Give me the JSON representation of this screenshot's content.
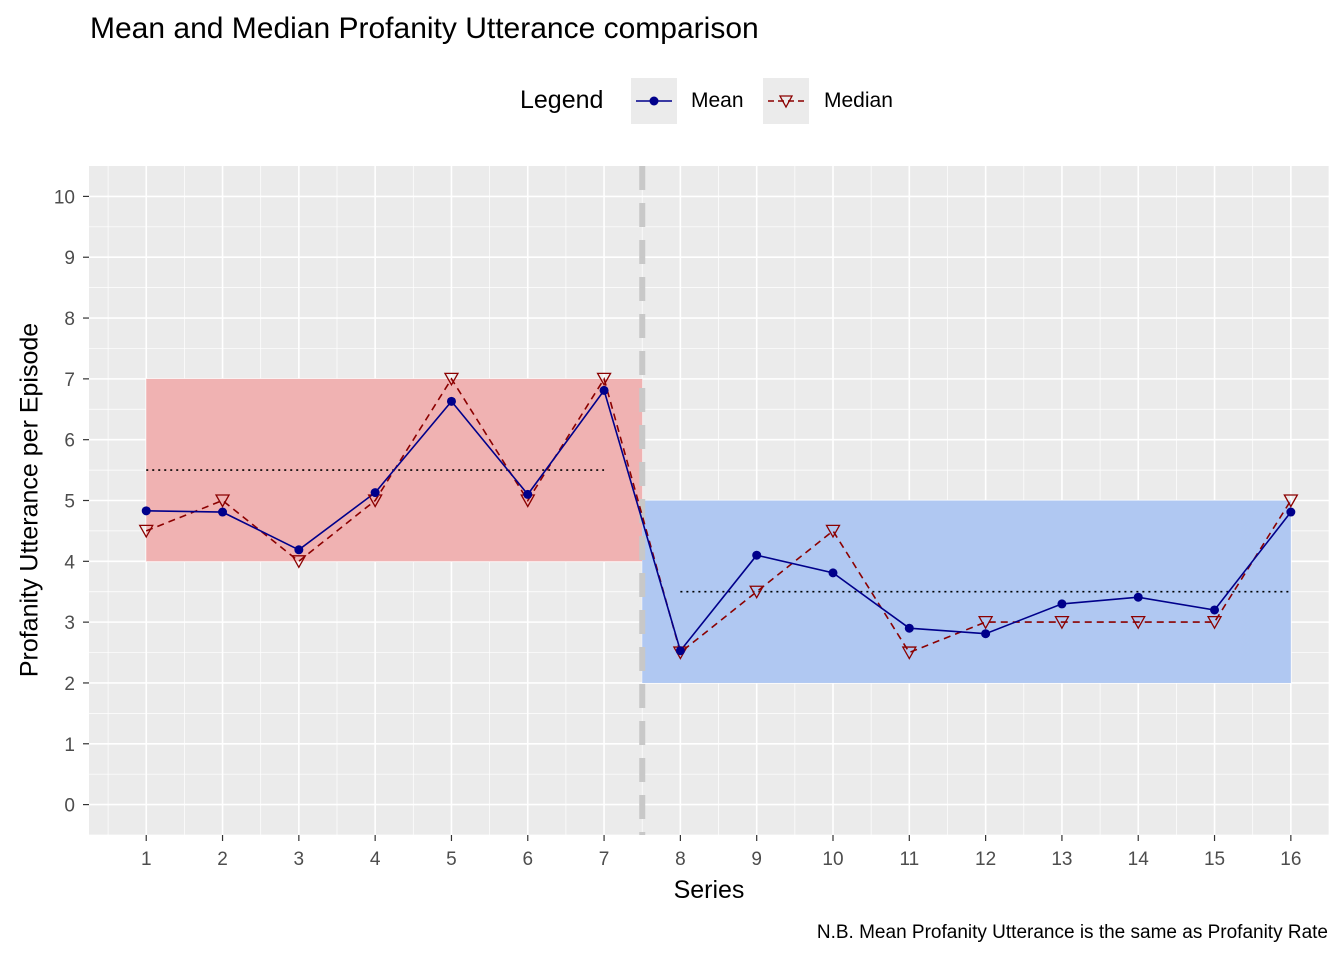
{
  "title": "Mean and Median Profanity Utterance comparison",
  "caption": "N.B. Mean Profanity Utterance is the same as Profanity Rate",
  "legend": {
    "title": "Legend",
    "items": [
      {
        "label": "Mean",
        "color": "#00008b",
        "line": "solid",
        "marker": "circle"
      },
      {
        "label": "Median",
        "color": "#8b0000",
        "line": "dashed",
        "marker": "triangle-down-open"
      }
    ]
  },
  "chart_data": {
    "type": "line",
    "title": "Mean and Median Profanity Utterance comparison",
    "xlabel": "Series",
    "ylabel": "Profanity Utterance per Episode",
    "x": [
      1,
      2,
      3,
      4,
      5,
      6,
      7,
      8,
      9,
      10,
      11,
      12,
      13,
      14,
      15,
      16
    ],
    "xlim": [
      0.25,
      16.5
    ],
    "ylim": [
      -0.5,
      10.5
    ],
    "yticks": [
      0,
      1,
      2,
      3,
      4,
      5,
      6,
      7,
      8,
      9,
      10
    ],
    "grid": true,
    "legend_position": "top",
    "series": [
      {
        "name": "Mean",
        "color": "#00008b",
        "values": [
          4.83,
          4.81,
          4.19,
          5.13,
          6.63,
          5.1,
          6.81,
          2.53,
          4.1,
          3.81,
          2.9,
          2.81,
          3.3,
          3.41,
          3.2,
          4.81
        ]
      },
      {
        "name": "Median",
        "color": "#8b0000",
        "values": [
          4.5,
          5.0,
          4.0,
          5.0,
          7.0,
          5.0,
          7.0,
          2.5,
          3.5,
          4.5,
          2.5,
          3.0,
          3.0,
          3.0,
          3.0,
          5.0
        ]
      }
    ],
    "bands": [
      {
        "x": [
          1,
          7.5
        ],
        "y": [
          4,
          7
        ],
        "color": "#f0b2b2"
      },
      {
        "x": [
          7.5,
          16
        ],
        "y": [
          2,
          5
        ],
        "color": "#b0c8f2"
      }
    ],
    "reference_lines": [
      {
        "x": [
          1,
          7
        ],
        "y": 5.5,
        "style": "dotted",
        "color": "#000000"
      },
      {
        "x": [
          8,
          16
        ],
        "y": 3.5,
        "style": "dotted",
        "color": "#000000"
      }
    ],
    "divider": {
      "x": 7.5,
      "style": "dashed",
      "color": "#c8c8c8"
    }
  }
}
